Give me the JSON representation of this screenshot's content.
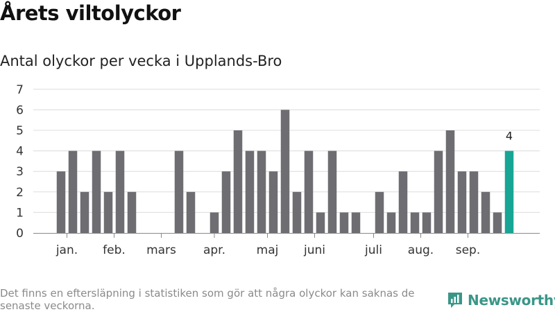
{
  "title": "Årets viltolyckor",
  "subtitle": "Antal olyckor per vecka i Upplands-Bro",
  "footnote": "Det finns en eftersläpning i statistiken som gör att några olyckor kan saknas de senaste veckorna.",
  "brand": "Newsworthy",
  "colors": {
    "bar": "#6e6d72",
    "highlight": "#17a595",
    "grid": "#dcdcdc",
    "axis": "#888888",
    "brand": "#3a9688"
  },
  "chart_data": {
    "type": "bar",
    "title": "Antal olyckor per vecka i Upplands-Bro",
    "xlabel": "",
    "ylabel": "",
    "ylim": [
      0,
      7
    ],
    "yticks": [
      0,
      1,
      2,
      3,
      4,
      5,
      6,
      7
    ],
    "grid": true,
    "series": [
      {
        "name": "Antal olyckor",
        "values": [
          3,
          4,
          2,
          4,
          2,
          4,
          2,
          0,
          0,
          0,
          4,
          2,
          0,
          1,
          3,
          5,
          4,
          4,
          3,
          6,
          2,
          4,
          1,
          4,
          1,
          1,
          0,
          2,
          1,
          3,
          1,
          1,
          4,
          5,
          3,
          3,
          2,
          1,
          4
        ]
      }
    ],
    "highlight_index": 38,
    "highlight_label": "4",
    "month_labels": [
      {
        "label": "jan.",
        "position": 0.5
      },
      {
        "label": "feb.",
        "position": 4.5
      },
      {
        "label": "mars",
        "position": 8.5
      },
      {
        "label": "apr.",
        "position": 13
      },
      {
        "label": "maj",
        "position": 17.5
      },
      {
        "label": "juni",
        "position": 21.5
      },
      {
        "label": "juli",
        "position": 26.5
      },
      {
        "label": "aug.",
        "position": 30.5
      },
      {
        "label": "sep.",
        "position": 34.5
      }
    ]
  }
}
